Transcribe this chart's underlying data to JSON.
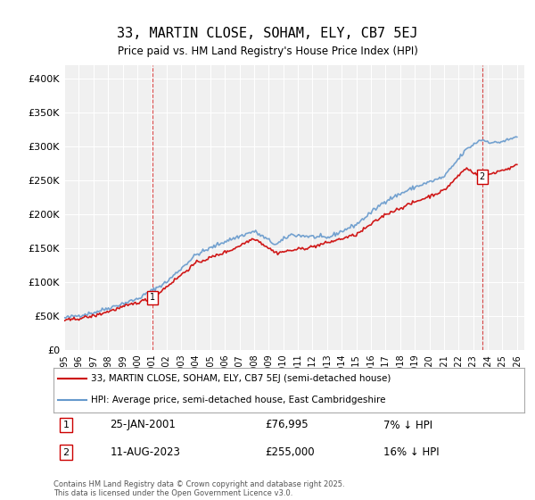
{
  "title": "33, MARTIN CLOSE, SOHAM, ELY, CB7 5EJ",
  "subtitle": "Price paid vs. HM Land Registry's House Price Index (HPI)",
  "ylim": [
    0,
    420000
  ],
  "yticks": [
    0,
    50000,
    100000,
    150000,
    200000,
    250000,
    300000,
    350000,
    400000
  ],
  "ytick_labels": [
    "£0",
    "£50K",
    "£100K",
    "£150K",
    "£200K",
    "£250K",
    "£300K",
    "£350K",
    "£400K"
  ],
  "xlim_start": 1995.0,
  "xlim_end": 2026.5,
  "background_color": "#ffffff",
  "plot_bg_color": "#f0f0f0",
  "grid_color": "#ffffff",
  "line_red_color": "#cc0000",
  "line_blue_color": "#6699cc",
  "marker1_x": 2001.07,
  "marker1_y": 76995,
  "marker2_x": 2023.62,
  "marker2_y": 255000,
  "legend_line1": "33, MARTIN CLOSE, SOHAM, ELY, CB7 5EJ (semi-detached house)",
  "legend_line2": "HPI: Average price, semi-detached house, East Cambridgeshire",
  "annotation1_num": "1",
  "annotation1_date": "25-JAN-2001",
  "annotation1_price": "£76,995",
  "annotation1_hpi": "7% ↓ HPI",
  "annotation2_num": "2",
  "annotation2_date": "11-AUG-2023",
  "annotation2_price": "£255,000",
  "annotation2_hpi": "16% ↓ HPI",
  "footer": "Contains HM Land Registry data © Crown copyright and database right 2025.\nThis data is licensed under the Open Government Licence v3.0."
}
